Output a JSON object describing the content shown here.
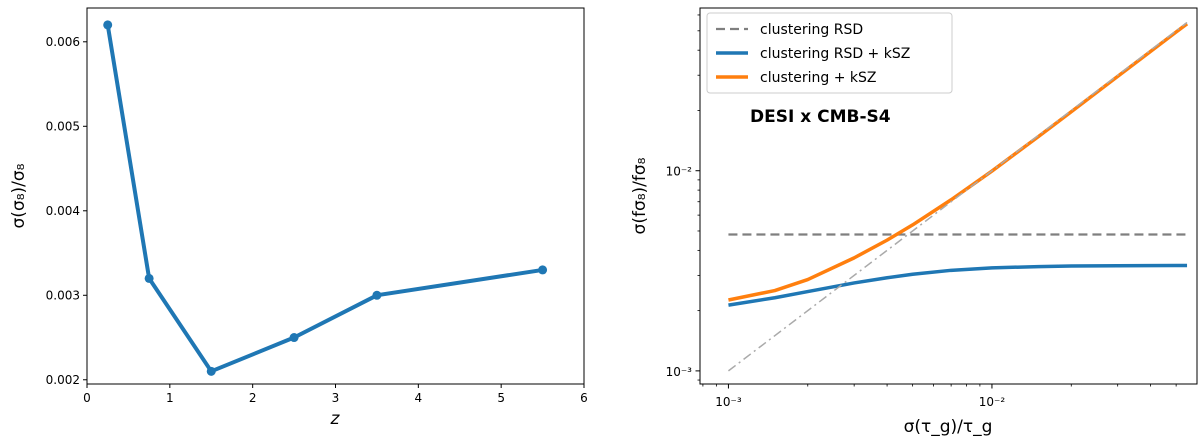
{
  "chart_data": [
    {
      "type": "line",
      "x": [
        0.25,
        0.75,
        1.5,
        2.5,
        3.5,
        5.5
      ],
      "series": [
        {
          "values": [
            0.0062,
            0.0032,
            0.0021,
            0.0025,
            0.003,
            0.0033
          ],
          "color": "#1f77b4",
          "markers": true
        }
      ],
      "xlim": [
        0,
        6
      ],
      "ylim": [
        0.00195,
        0.0064
      ],
      "xticks": [
        0,
        1,
        2,
        3,
        4,
        5,
        6
      ],
      "xtick_labels": [
        "0",
        "1",
        "2",
        "3",
        "4",
        "5",
        "6"
      ],
      "yticks": [
        0.002,
        0.003,
        0.004,
        0.005,
        0.006
      ],
      "ytick_labels": [
        "0.002",
        "0.003",
        "0.004",
        "0.005",
        "0.006"
      ],
      "xlabel": "z",
      "ylabel": "σ(σ₈)/σ₈",
      "grid": false
    },
    {
      "type": "line",
      "xscale": "log",
      "yscale": "log",
      "xlim": [
        0.00078,
        0.06
      ],
      "ylim": [
        0.00086,
        0.065
      ],
      "xticks": [
        0.001,
        0.01
      ],
      "xtick_labels": [
        "10⁻³",
        "10⁻²"
      ],
      "yticks": [
        0.001,
        0.01
      ],
      "ytick_labels": [
        "10⁻³",
        "10⁻²"
      ],
      "xlabel": "σ(τ_g)/τ_g",
      "ylabel": "σ(fσ₈)/fσ₈",
      "annotation": "DESI x CMB-S4",
      "legend_position": "top-left",
      "grid": false,
      "series": [
        {
          "name": "clustering RSD",
          "color": "#7f7f7f",
          "style": "dashed",
          "x": [
            0.001,
            0.055
          ],
          "values": [
            0.0048,
            0.0048
          ]
        },
        {
          "name": "clustering RSD + kSZ",
          "color": "#1f77b4",
          "style": "solid",
          "x": [
            0.001,
            0.0015,
            0.002,
            0.003,
            0.004,
            0.005,
            0.007,
            0.01,
            0.015,
            0.02,
            0.03,
            0.05,
            0.055
          ],
          "values": [
            0.00213,
            0.00232,
            0.00249,
            0.00275,
            0.00292,
            0.00304,
            0.00318,
            0.00327,
            0.00332,
            0.00334,
            0.00335,
            0.00336,
            0.00336
          ]
        },
        {
          "name": "clustering + kSZ",
          "color": "#ff7f0e",
          "style": "solid",
          "x": [
            0.001,
            0.0015,
            0.002,
            0.003,
            0.004,
            0.005,
            0.007,
            0.01,
            0.015,
            0.02,
            0.03,
            0.05,
            0.055
          ],
          "values": [
            0.00226,
            0.00252,
            0.00286,
            0.00367,
            0.0045,
            0.00536,
            0.00716,
            0.00996,
            0.0148,
            0.0197,
            0.0296,
            0.0493,
            0.0542
          ]
        },
        {
          "color": "#aaaaaa",
          "style": "dashdot",
          "x": [
            0.001,
            0.055
          ],
          "values": [
            0.001,
            0.055
          ]
        }
      ]
    }
  ]
}
